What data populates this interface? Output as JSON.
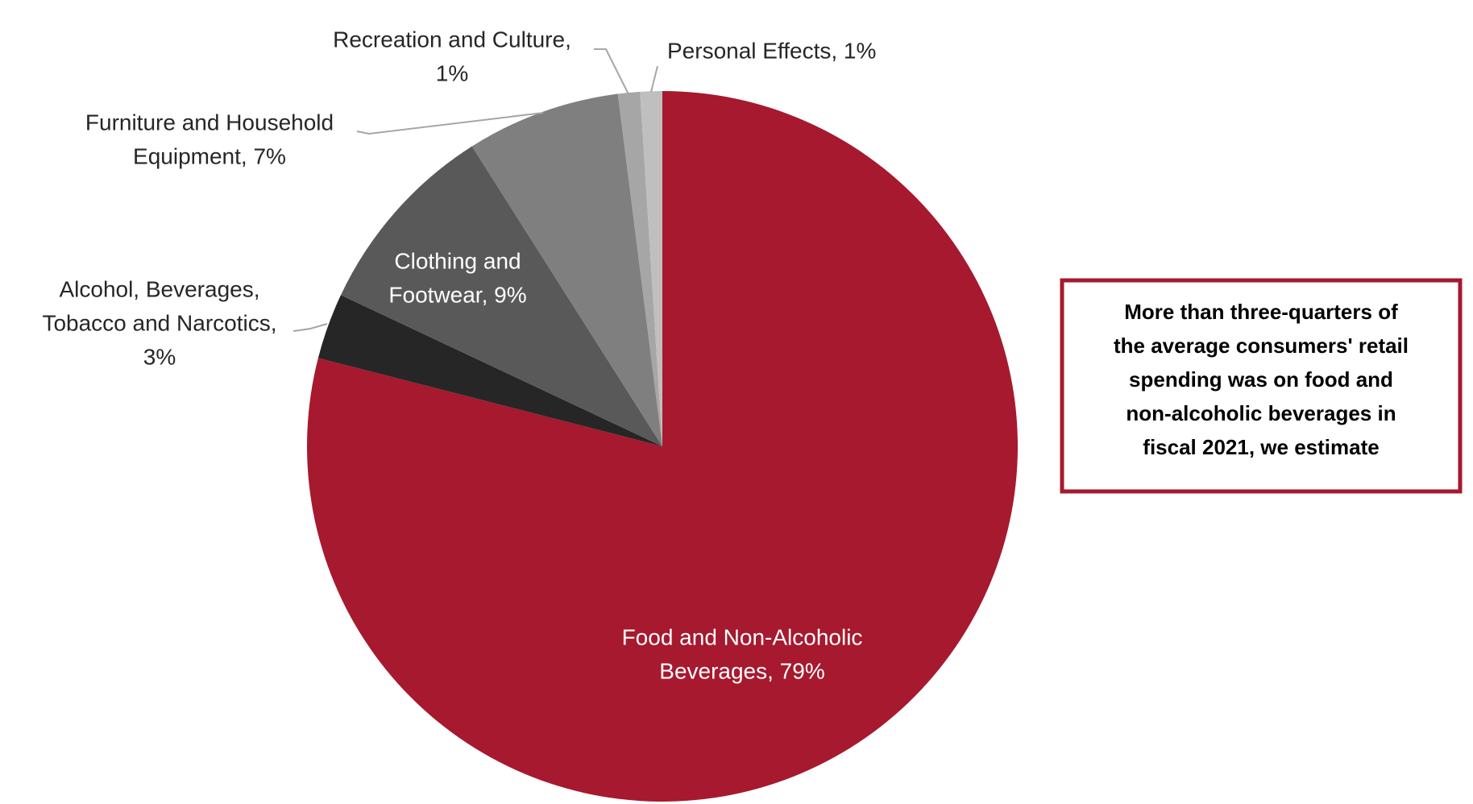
{
  "chart_data": {
    "type": "pie",
    "labels": [
      [
        "Food and Non-Alcoholic",
        "Beverages, 79%"
      ],
      [
        "Alcohol, Beverages,",
        "Tobacco and Narcotics,",
        "3%"
      ],
      [
        "Clothing and",
        "Footwear, 9%"
      ],
      [
        "Furniture and Household",
        "Equipment, 7%"
      ],
      [
        "Recreation and Culture,",
        "1%"
      ],
      [
        "Personal Effects, 1%"
      ]
    ],
    "values": [
      79,
      3,
      9,
      7,
      1,
      1
    ],
    "colors": [
      "#a6192e",
      "#262626",
      "#595959",
      "#7f7f7f",
      "#a6a6a6",
      "#bfbfbf"
    ],
    "note": [
      "More than three-quarters of",
      "the average consumers' retail",
      "spending was on food and",
      "non-alcoholic beverages in",
      "fiscal 2021, we estimate"
    ]
  }
}
